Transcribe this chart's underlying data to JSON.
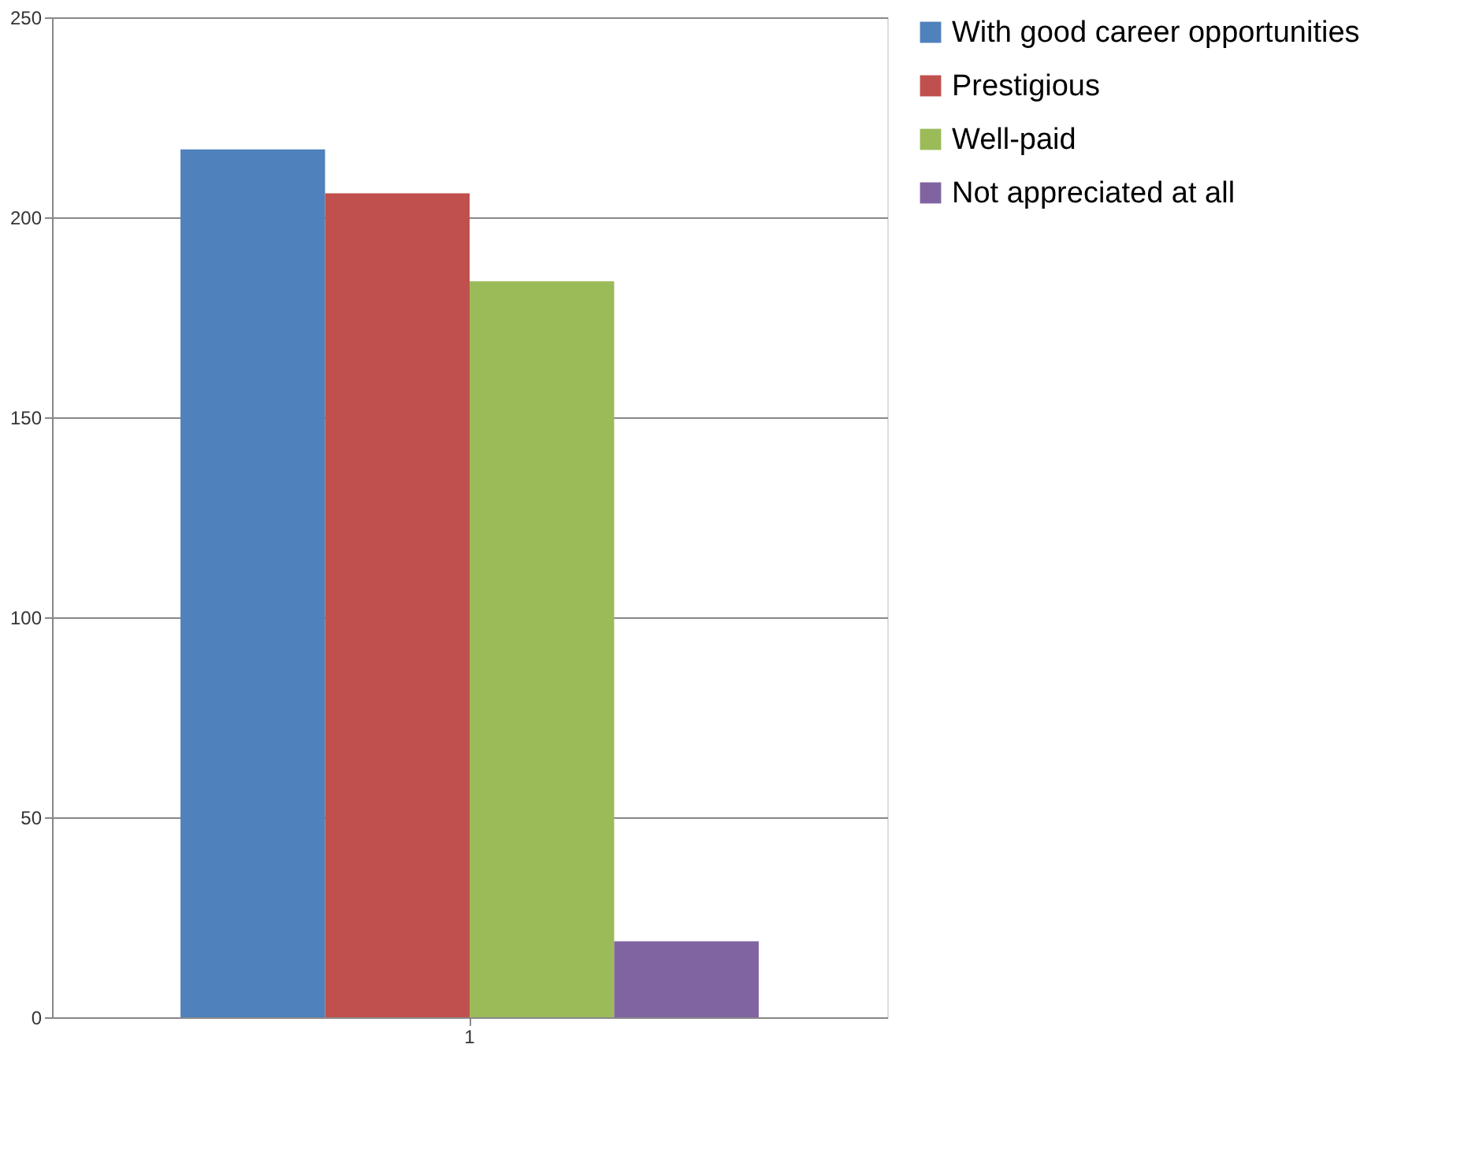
{
  "chart_data": {
    "type": "bar",
    "categories": [
      "1"
    ],
    "series": [
      {
        "name": "With good career opportunities",
        "color": "#4f81bd",
        "values": [
          217
        ]
      },
      {
        "name": "Prestigious",
        "color": "#c0504d",
        "values": [
          206
        ]
      },
      {
        "name": "Well-paid",
        "color": "#9bbb59",
        "values": [
          184
        ]
      },
      {
        "name": "Not appreciated at all",
        "color": "#8064a2",
        "values": [
          19
        ]
      }
    ],
    "ylim": [
      0,
      250
    ],
    "yticks": [
      0,
      50,
      100,
      150,
      200,
      250
    ],
    "grid": "y",
    "legend": "right"
  }
}
